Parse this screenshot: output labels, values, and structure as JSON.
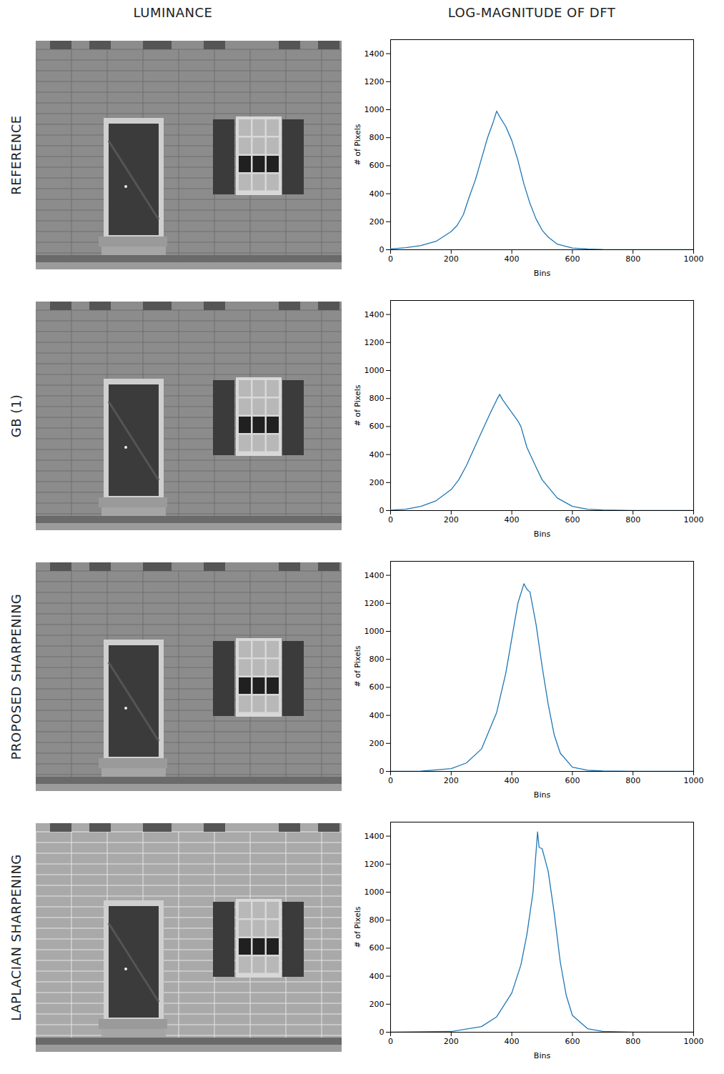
{
  "columns": [
    "LUMINANCE",
    "LOG-MAGNITUDE OF DFT"
  ],
  "chart_data": [
    {
      "type": "line",
      "title": "REFERENCE",
      "x_label": "Bins",
      "y_label": "# of Pixels",
      "xlim": [
        0,
        1000
      ],
      "ylim": [
        0,
        1500
      ],
      "xticks": [
        0,
        200,
        400,
        600,
        800,
        1000
      ],
      "yticks": [
        0,
        200,
        400,
        600,
        800,
        1000,
        1200,
        1400
      ],
      "series": [
        {
          "name": "REFERENCE",
          "color": "#1f77b4",
          "x": [
            0,
            50,
            100,
            150,
            200,
            220,
            240,
            260,
            280,
            300,
            320,
            340,
            350,
            360,
            380,
            400,
            420,
            440,
            460,
            480,
            500,
            520,
            550,
            600,
            650,
            700,
            800,
            900,
            1000
          ],
          "values": [
            5,
            15,
            30,
            60,
            130,
            175,
            250,
            380,
            500,
            650,
            800,
            920,
            990,
            950,
            880,
            780,
            640,
            470,
            330,
            220,
            140,
            90,
            40,
            12,
            5,
            2,
            1,
            0,
            0
          ]
        }
      ]
    },
    {
      "type": "line",
      "title": "GB (1)",
      "x_label": "Bins",
      "y_label": "# of Pixels",
      "xlim": [
        0,
        1000
      ],
      "ylim": [
        0,
        1500
      ],
      "xticks": [
        0,
        200,
        400,
        600,
        800,
        1000
      ],
      "yticks": [
        0,
        200,
        400,
        600,
        800,
        1000,
        1200,
        1400
      ],
      "series": [
        {
          "name": "GB (1)",
          "color": "#1f77b4",
          "x": [
            0,
            50,
            100,
            150,
            200,
            225,
            250,
            275,
            300,
            330,
            350,
            360,
            370,
            400,
            420,
            430,
            450,
            480,
            500,
            550,
            600,
            650,
            700,
            800,
            900,
            1000
          ],
          "values": [
            3,
            10,
            30,
            70,
            150,
            220,
            320,
            440,
            560,
            700,
            790,
            830,
            790,
            700,
            640,
            600,
            450,
            310,
            220,
            90,
            30,
            10,
            4,
            1,
            0,
            0
          ]
        }
      ]
    },
    {
      "type": "line",
      "title": "PROPOSED SHARPENING",
      "x_label": "Bins",
      "y_label": "# of Pixels",
      "xlim": [
        0,
        1000
      ],
      "ylim": [
        0,
        1500
      ],
      "xticks": [
        0,
        200,
        400,
        600,
        800,
        1000
      ],
      "yticks": [
        0,
        200,
        400,
        600,
        800,
        1000,
        1200,
        1400
      ],
      "series": [
        {
          "name": "PROPOSED SHARPENING",
          "color": "#1f77b4",
          "x": [
            0,
            100,
            200,
            250,
            300,
            350,
            380,
            400,
            420,
            440,
            450,
            460,
            480,
            500,
            520,
            540,
            560,
            600,
            650,
            700,
            800,
            900,
            1000
          ],
          "values": [
            0,
            2,
            20,
            60,
            160,
            420,
            700,
            950,
            1200,
            1340,
            1300,
            1280,
            1050,
            750,
            480,
            260,
            130,
            30,
            8,
            3,
            0,
            0,
            0
          ]
        }
      ]
    },
    {
      "type": "line",
      "title": "LAPLACIAN SHARPENING",
      "x_label": "Bins",
      "y_label": "# of Pixels",
      "xlim": [
        0,
        1000
      ],
      "ylim": [
        0,
        1500
      ],
      "xticks": [
        0,
        200,
        400,
        600,
        800,
        1000
      ],
      "yticks": [
        0,
        200,
        400,
        600,
        800,
        1000,
        1200,
        1400
      ],
      "series": [
        {
          "name": "LAPLACIAN SHARPENING",
          "color": "#1f77b4",
          "x": [
            0,
            200,
            300,
            350,
            400,
            430,
            450,
            470,
            485,
            490,
            500,
            520,
            540,
            560,
            580,
            600,
            650,
            700,
            800,
            900,
            1000
          ],
          "values": [
            0,
            5,
            40,
            110,
            280,
            480,
            700,
            1000,
            1430,
            1320,
            1310,
            1150,
            850,
            500,
            260,
            120,
            25,
            6,
            1,
            0,
            0
          ]
        }
      ]
    }
  ]
}
